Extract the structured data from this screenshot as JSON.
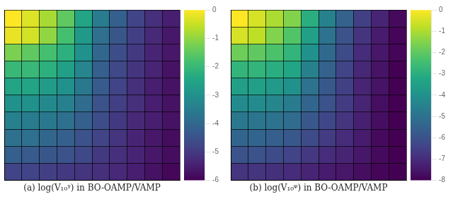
{
  "chart_data": [
    {
      "type": "heatmap",
      "x_label": "(a) log(V₁₀ᵞ) in BO-OAMP/VAMP",
      "color": "viridis",
      "grid": true,
      "tick_labels": false,
      "color_range": [
        -6,
        0
      ],
      "color_ticks": [
        0,
        -1,
        -2,
        -3,
        -4,
        -5,
        -6
      ],
      "cells": [
        [
          0.0,
          -0.3,
          -0.8,
          -1.5,
          -2.5,
          -3.5,
          -4.2,
          -4.8,
          -5.2,
          -5.5
        ],
        [
          -0.2,
          -0.4,
          -1.0,
          -1.8,
          -2.8,
          -3.8,
          -4.4,
          -4.9,
          -5.3,
          -5.6
        ],
        [
          -1.2,
          -1.5,
          -1.8,
          -2.2,
          -3.0,
          -4.0,
          -4.6,
          -5.0,
          -5.4,
          -5.6
        ],
        [
          -2.0,
          -2.0,
          -2.2,
          -2.6,
          -3.3,
          -4.2,
          -4.7,
          -5.1,
          -5.4,
          -5.7
        ],
        [
          -2.5,
          -2.5,
          -2.7,
          -3.0,
          -3.6,
          -4.3,
          -4.8,
          -5.2,
          -5.5,
          -5.7
        ],
        [
          -3.0,
          -3.0,
          -3.2,
          -3.4,
          -3.9,
          -4.5,
          -4.9,
          -5.2,
          -5.5,
          -5.7
        ],
        [
          -3.4,
          -3.5,
          -3.6,
          -3.8,
          -4.2,
          -4.6,
          -5.0,
          -5.3,
          -5.5,
          -5.7
        ],
        [
          -3.8,
          -3.8,
          -4.0,
          -4.2,
          -4.5,
          -4.8,
          -5.1,
          -5.4,
          -5.6,
          -5.8
        ],
        [
          -4.2,
          -4.3,
          -4.4,
          -4.5,
          -4.7,
          -5.0,
          -5.2,
          -5.4,
          -5.6,
          -5.8
        ],
        [
          -4.8,
          -4.8,
          -4.9,
          -5.0,
          -5.1,
          -5.2,
          -5.3,
          -5.5,
          -5.7,
          -5.9
        ]
      ]
    },
    {
      "type": "heatmap",
      "x_label": "(b) log(V₁₀ᵠ) in BO-OAMP/VAMP",
      "color": "viridis",
      "grid": true,
      "tick_labels": false,
      "color_range": [
        -8,
        0
      ],
      "color_ticks": [
        0,
        -1,
        -2,
        -3,
        -4,
        -5,
        -6,
        -7,
        -8
      ],
      "cells": [
        [
          0.0,
          -0.5,
          -1.0,
          -1.5,
          -3.0,
          -4.5,
          -5.5,
          -6.5,
          -7.2,
          -7.8
        ],
        [
          -0.5,
          -0.8,
          -1.5,
          -2.2,
          -3.5,
          -5.0,
          -6.0,
          -6.8,
          -7.4,
          -7.9
        ],
        [
          -1.8,
          -2.0,
          -2.3,
          -2.8,
          -4.0,
          -5.3,
          -6.2,
          -7.0,
          -7.5,
          -7.9
        ],
        [
          -2.8,
          -2.8,
          -3.0,
          -3.3,
          -4.5,
          -5.5,
          -6.4,
          -7.1,
          -7.6,
          -8.0
        ],
        [
          -3.5,
          -3.5,
          -3.7,
          -4.0,
          -5.0,
          -5.8,
          -6.5,
          -7.2,
          -7.6,
          -8.0
        ],
        [
          -4.2,
          -4.2,
          -4.4,
          -4.7,
          -5.4,
          -6.0,
          -6.6,
          -7.2,
          -7.7,
          -8.0
        ],
        [
          -4.8,
          -4.9,
          -5.0,
          -5.2,
          -5.8,
          -6.3,
          -6.8,
          -7.3,
          -7.7,
          -8.0
        ],
        [
          -5.4,
          -5.4,
          -5.6,
          -5.8,
          -6.2,
          -6.6,
          -7.0,
          -7.4,
          -7.8,
          -8.0
        ],
        [
          -6.0,
          -6.0,
          -6.2,
          -6.4,
          -6.7,
          -7.0,
          -7.2,
          -7.5,
          -7.8,
          -8.0
        ],
        [
          -6.8,
          -6.8,
          -6.9,
          -7.0,
          -7.2,
          -7.4,
          -7.5,
          -7.7,
          -7.9,
          -8.0
        ]
      ]
    }
  ]
}
